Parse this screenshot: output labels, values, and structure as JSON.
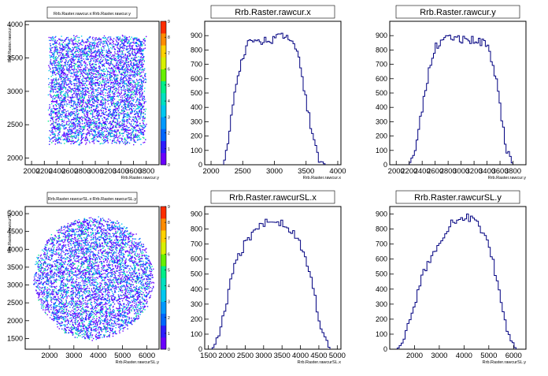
{
  "chart_data": [
    {
      "type": "heatmap",
      "title": "Rrb.Raster.rawcur.x:Rrb.Raster.rawcur.y",
      "xlabel": "Rrb.Raster.rawcur.y",
      "ylabel": "Rrb.Raster.rawcur.x",
      "xlim": [
        1900,
        4000
      ],
      "ylim": [
        1900,
        4050
      ],
      "x_ticks": [
        "2000",
        "2200",
        "2400",
        "2600",
        "2800",
        "3000",
        "3200",
        "3400",
        "3600",
        "3800"
      ],
      "y_ticks": [
        "2000",
        "2500",
        "3000",
        "3500",
        "4000"
      ],
      "data_region": {
        "x": [
          2250,
          3800
        ],
        "y": [
          2200,
          3850
        ],
        "shape": "square"
      },
      "z_scale": {
        "min": 0,
        "max": 9,
        "ticks": [
          "0",
          "1",
          "2",
          "3",
          "4",
          "5",
          "6",
          "7",
          "8",
          "9"
        ]
      },
      "grid": false
    },
    {
      "type": "bar",
      "title": "Rrb.Raster.rawcur.x",
      "xlabel": "Rrb.Raster.rawcur.x",
      "ylabel": "",
      "xlim": [
        1900,
        4050
      ],
      "ylim": [
        0,
        1000
      ],
      "x_ticks": [
        "2000",
        "2500",
        "3000",
        "3500",
        "4000"
      ],
      "y_ticks": [
        "0",
        "100",
        "200",
        "300",
        "400",
        "500",
        "600",
        "700",
        "800",
        "900"
      ],
      "x": [
        2200,
        2300,
        2400,
        2500,
        2600,
        2700,
        2800,
        2900,
        3000,
        3100,
        3200,
        3300,
        3400,
        3500,
        3600,
        3700,
        3800
      ],
      "values": [
        0,
        260,
        560,
        760,
        860,
        880,
        860,
        880,
        870,
        900,
        880,
        860,
        700,
        450,
        220,
        50,
        0
      ],
      "grid": false
    },
    {
      "type": "bar",
      "title": "Rrb.Raster.rawcur.y",
      "xlabel": "Rrb.Raster.rawcur.y",
      "ylabel": "",
      "xlim": [
        1900,
        4000
      ],
      "ylim": [
        0,
        1000
      ],
      "x_ticks": [
        "2000",
        "2200",
        "2400",
        "2600",
        "2800",
        "3000",
        "3200",
        "3400",
        "3600",
        "3800"
      ],
      "y_ticks": [
        "0",
        "100",
        "200",
        "300",
        "400",
        "500",
        "600",
        "700",
        "800",
        "900"
      ],
      "x": [
        2200,
        2300,
        2400,
        2500,
        2600,
        2700,
        2800,
        2900,
        3000,
        3100,
        3200,
        3300,
        3400,
        3500,
        3600,
        3700,
        3800
      ],
      "values": [
        0,
        120,
        380,
        650,
        820,
        860,
        880,
        870,
        880,
        860,
        870,
        850,
        840,
        700,
        420,
        100,
        0
      ],
      "grid": false
    },
    {
      "type": "heatmap",
      "title": "Rrb.Raster.rawcurSL.x:Rrb.Raster.rawcurSL.y",
      "xlabel": "Rrb.Raster.rawcurSL.y",
      "ylabel": "Rrb.Raster.rawcurSL.x",
      "xlim": [
        1000,
        6500
      ],
      "ylim": [
        1200,
        5200
      ],
      "x_ticks": [
        "2000",
        "3000",
        "4000",
        "5000",
        "6000"
      ],
      "y_ticks": [
        "1500",
        "2000",
        "2500",
        "3000",
        "3500",
        "4000",
        "4500",
        "5000"
      ],
      "data_region": {
        "center": [
          3800,
          3200
        ],
        "radius_x": 2500,
        "radius_y": 1750,
        "shape": "disk"
      },
      "z_scale": {
        "min": 0,
        "max": 9,
        "ticks": [
          "0",
          "1",
          "2",
          "3",
          "4",
          "5",
          "6",
          "7",
          "8",
          "9"
        ]
      },
      "grid": false
    },
    {
      "type": "bar",
      "title": "Rrb.Raster.rawcurSL.x",
      "xlabel": "Rrb.Raster.rawcurSL.x",
      "ylabel": "",
      "xlim": [
        1400,
        5100
      ],
      "ylim": [
        0,
        950
      ],
      "x_ticks": [
        "1500",
        "2000",
        "2500",
        "3000",
        "3500",
        "4000",
        "4500",
        "5000"
      ],
      "y_ticks": [
        "0",
        "100",
        "200",
        "300",
        "400",
        "500",
        "600",
        "700",
        "800",
        "900"
      ],
      "x": [
        1600,
        1800,
        2000,
        2200,
        2400,
        2600,
        2800,
        3000,
        3200,
        3400,
        3600,
        3800,
        4000,
        4200,
        4400,
        4600,
        4800
      ],
      "values": [
        0,
        80,
        330,
        540,
        660,
        740,
        790,
        830,
        860,
        850,
        830,
        790,
        700,
        560,
        330,
        100,
        0
      ],
      "grid": false
    },
    {
      "type": "bar",
      "title": "Rrb.Raster.rawcurSL.y",
      "xlabel": "Rrb.Raster.rawcurSL.y",
      "ylabel": "",
      "xlim": [
        1000,
        6500
      ],
      "ylim": [
        0,
        950
      ],
      "x_ticks": [
        "2000",
        "3000",
        "4000",
        "5000",
        "6000"
      ],
      "y_ticks": [
        "0",
        "100",
        "200",
        "300",
        "400",
        "500",
        "600",
        "700",
        "800",
        "900"
      ],
      "x": [
        1300,
        1600,
        1900,
        2200,
        2500,
        2800,
        3100,
        3400,
        3700,
        4000,
        4300,
        4600,
        4900,
        5200,
        5500,
        5800,
        6100
      ],
      "values": [
        0,
        60,
        240,
        420,
        560,
        660,
        740,
        820,
        860,
        880,
        870,
        820,
        720,
        560,
        300,
        80,
        0
      ],
      "grid": false
    }
  ]
}
